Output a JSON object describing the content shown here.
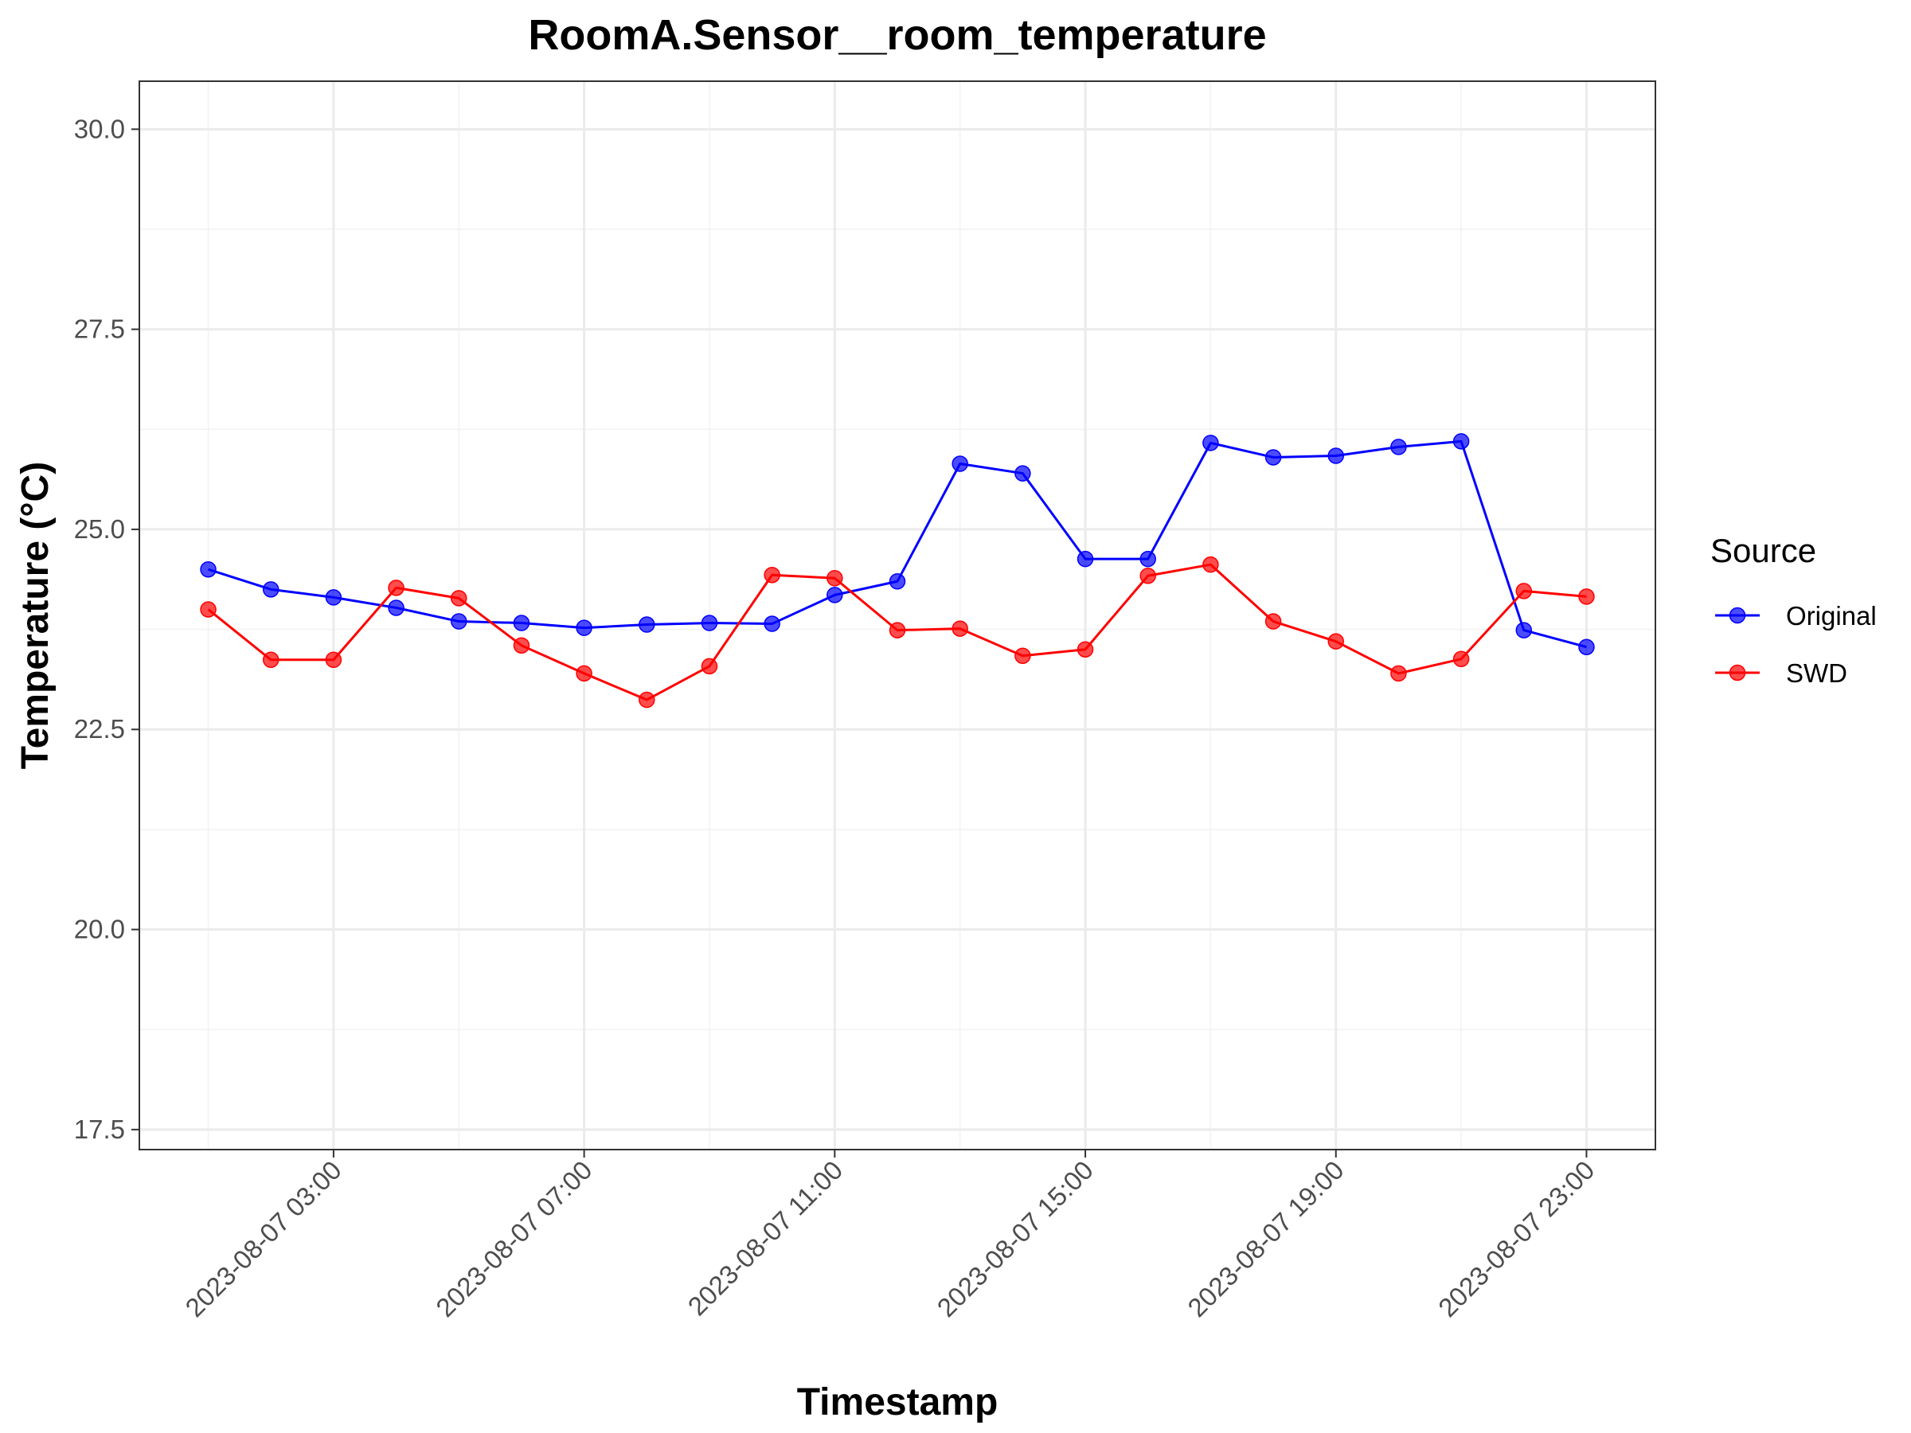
{
  "chart_data": {
    "type": "line",
    "title": "RoomA.Sensor__room_temperature",
    "xlabel": "Timestamp",
    "ylabel": "Temperature (°C)",
    "ylim": [
      17.5,
      30.0
    ],
    "xlim": [
      "2023-08-07 01:00",
      "2023-08-08 00:00"
    ],
    "y_ticks": [
      17.5,
      20.0,
      22.5,
      25.0,
      27.5,
      30.0
    ],
    "y_tick_labels": [
      "17.5",
      "20.0",
      "22.5",
      "25.0",
      "27.5",
      "30.0"
    ],
    "x_ticks": [
      "2023-08-07 03:00",
      "2023-08-07 07:00",
      "2023-08-07 11:00",
      "2023-08-07 15:00",
      "2023-08-07 19:00",
      "2023-08-07 23:00"
    ],
    "x_tick_labels": [
      "2023-08-07 03:00",
      "2023-08-07 07:00",
      "2023-08-07 11:00",
      "2023-08-07 15:00",
      "2023-08-07 19:00",
      "2023-08-07 23:00"
    ],
    "grid": true,
    "legend": {
      "title": "Source",
      "position": "right"
    },
    "x": [
      "2023-08-07 01:00",
      "2023-08-07 02:00",
      "2023-08-07 03:00",
      "2023-08-07 04:00",
      "2023-08-07 05:00",
      "2023-08-07 06:00",
      "2023-08-07 07:00",
      "2023-08-07 08:00",
      "2023-08-07 09:00",
      "2023-08-07 10:00",
      "2023-08-07 11:00",
      "2023-08-07 12:00",
      "2023-08-07 13:00",
      "2023-08-07 14:00",
      "2023-08-07 15:00",
      "2023-08-07 16:00",
      "2023-08-07 17:00",
      "2023-08-07 18:00",
      "2023-08-07 19:00",
      "2023-08-07 20:00",
      "2023-08-07 21:00",
      "2023-08-07 22:00",
      "2023-08-07 23:00"
    ],
    "series": [
      {
        "name": "Original",
        "color": "#0000ff",
        "values": [
          24.5,
          24.25,
          24.15,
          24.02,
          23.85,
          23.83,
          23.77,
          23.81,
          23.83,
          23.82,
          24.18,
          24.35,
          25.82,
          25.7,
          24.63,
          24.63,
          26.08,
          25.9,
          25.92,
          26.03,
          26.1,
          23.74,
          23.53
        ]
      },
      {
        "name": "SWD",
        "color": "#ff0000",
        "values": [
          24.0,
          23.37,
          23.37,
          24.27,
          24.14,
          23.55,
          23.2,
          22.87,
          23.29,
          24.43,
          24.39,
          23.74,
          23.76,
          23.42,
          23.5,
          24.42,
          24.56,
          23.85,
          23.6,
          23.2,
          23.38,
          24.23,
          24.16
        ]
      }
    ]
  }
}
